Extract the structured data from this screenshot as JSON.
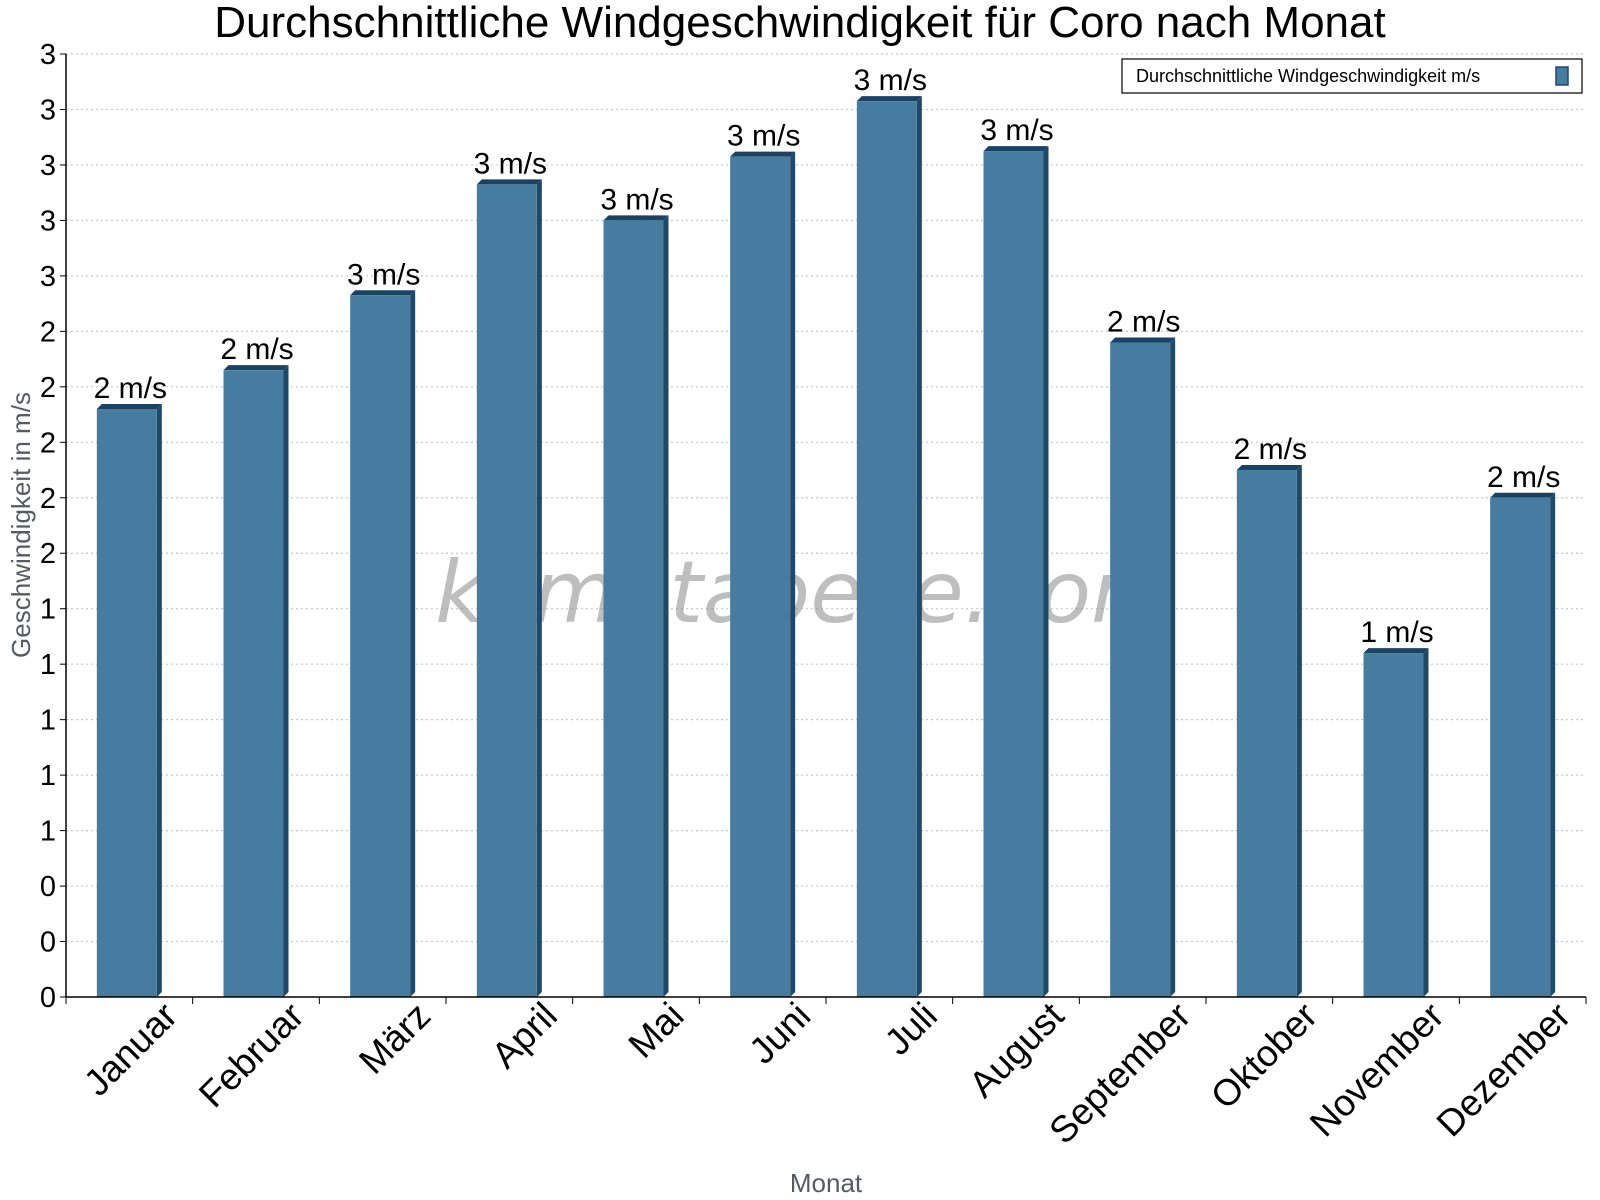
{
  "chart_data": {
    "type": "bar",
    "title": "Durchschnittliche Windgeschwindigkeit für Coro nach Monat",
    "xlabel": "Monat",
    "ylabel": "Geschwindigkeit in m/s",
    "categories": [
      "Januar",
      "Februar",
      "März",
      "April",
      "Mai",
      "Juni",
      "Juli",
      "August",
      "September",
      "Oktober",
      "November",
      "Dezember"
    ],
    "series": [
      {
        "name": "Durchschnittliche Windgeschwindigkeit m/s",
        "values": [
          2.12,
          2.26,
          2.53,
          2.93,
          2.8,
          3.03,
          3.23,
          3.05,
          2.36,
          1.9,
          1.24,
          1.8
        ],
        "data_labels": [
          "2 m/s",
          "2 m/s",
          "3 m/s",
          "3 m/s",
          "3 m/s",
          "3 m/s",
          "3 m/s",
          "3 m/s",
          "2 m/s",
          "2 m/s",
          "1 m/s",
          "2 m/s"
        ]
      }
    ],
    "ylim": [
      0,
      3.4
    ],
    "yticks": [
      0,
      0.2,
      0.4,
      0.6,
      0.8,
      1.0,
      1.2,
      1.4,
      1.6,
      1.8,
      2.0,
      2.2,
      2.4,
      2.6,
      2.8,
      3.0,
      3.2,
      3.4
    ],
    "ytick_labels": [
      "0",
      "0",
      "0",
      "1",
      "1",
      "1",
      "1",
      "1",
      "2",
      "2",
      "2",
      "2",
      "2",
      "3",
      "3",
      "3",
      "3",
      "3"
    ],
    "grid": true,
    "legend": "top-right",
    "watermark": "klimatabelle.com",
    "colors": {
      "bar_front": "#467c9f",
      "bar_side": "#1e4a6a",
      "bar_top": "#1b4263",
      "grid": "#c8c8c8",
      "axis": "#000000"
    }
  }
}
